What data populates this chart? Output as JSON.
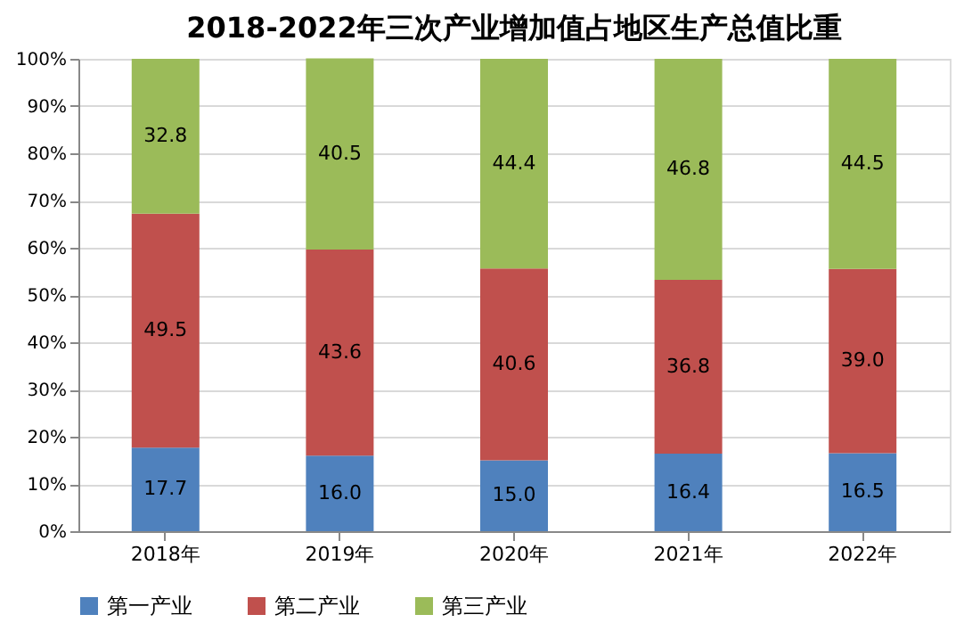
{
  "chart_data": {
    "type": "bar",
    "stacked": true,
    "title": "2018-2022年三次产业增加值占地区生产总值比重",
    "categories": [
      "2018年",
      "2019年",
      "2020年",
      "2021年",
      "2022年"
    ],
    "series": [
      {
        "name": "第一产业",
        "color": "#4f81bd",
        "values": [
          17.7,
          16.0,
          15.0,
          16.4,
          16.5
        ],
        "value_labels": [
          "17.7",
          "16.0",
          "15.0",
          "16.4",
          "16.5"
        ]
      },
      {
        "name": "第二产业",
        "color": "#c0504d",
        "values": [
          49.5,
          43.6,
          40.6,
          36.8,
          39.0
        ],
        "value_labels": [
          "49.5",
          "43.6",
          "40.6",
          "36.8",
          "39.0"
        ]
      },
      {
        "name": "第三产业",
        "color": "#9bbb59",
        "values": [
          32.8,
          40.5,
          44.4,
          46.8,
          44.5
        ],
        "value_labels": [
          "32.8",
          "40.5",
          "44.4",
          "46.8",
          "44.5"
        ]
      }
    ],
    "ylim": [
      0,
      100
    ],
    "yticks": [
      {
        "value": 0,
        "label": "0%"
      },
      {
        "value": 10,
        "label": "10%"
      },
      {
        "value": 20,
        "label": "20%"
      },
      {
        "value": 30,
        "label": "30%"
      },
      {
        "value": 40,
        "label": "40%"
      },
      {
        "value": 50,
        "label": "50%"
      },
      {
        "value": 60,
        "label": "60%"
      },
      {
        "value": 70,
        "label": "70%"
      },
      {
        "value": 80,
        "label": "80%"
      },
      {
        "value": 90,
        "label": "90%"
      },
      {
        "value": 100,
        "label": "100%"
      }
    ],
    "grid": "y",
    "legend": "bottom"
  }
}
